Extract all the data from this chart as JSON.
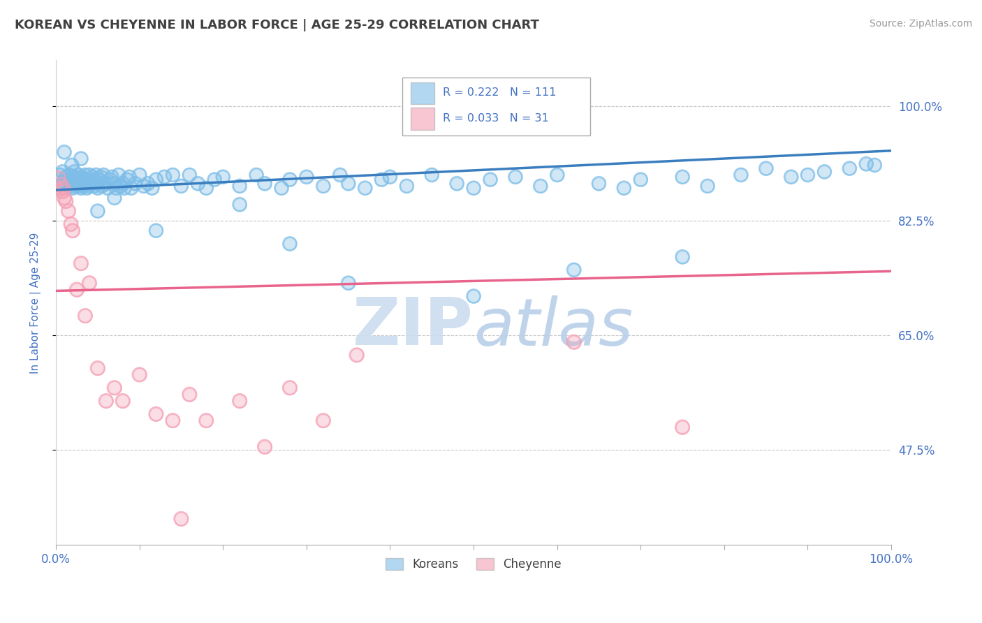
{
  "title": "KOREAN VS CHEYENNE IN LABOR FORCE | AGE 25-29 CORRELATION CHART",
  "source_text": "Source: ZipAtlas.com",
  "ylabel": "In Labor Force | Age 25-29",
  "xlim": [
    0.0,
    1.0
  ],
  "ylim": [
    0.33,
    1.07
  ],
  "yticks": [
    0.475,
    0.65,
    0.825,
    1.0
  ],
  "ytick_labels": [
    "47.5%",
    "65.0%",
    "82.5%",
    "100.0%"
  ],
  "xticks": [
    0.0,
    1.0
  ],
  "xtick_labels": [
    "0.0%",
    "100.0%"
  ],
  "korean_R": 0.222,
  "korean_N": 111,
  "cheyenne_R": 0.033,
  "cheyenne_N": 31,
  "korean_color": "#7dbde8",
  "cheyenne_color": "#f4a0b5",
  "korean_line_color": "#3a7ebf",
  "cheyenne_line_color": "#e8648c",
  "legend_text_color": "#4472c4",
  "background_color": "#ffffff",
  "grid_color": "#c8c8c8",
  "watermark_color": "#ccddef",
  "title_color": "#404040",
  "tick_label_color": "#4472c4",
  "korean_line_y0": 0.872,
  "korean_line_y1": 0.932,
  "cheyenne_line_y0": 0.718,
  "cheyenne_line_y1": 0.748,
  "korean_x": [
    0.005,
    0.008,
    0.01,
    0.012,
    0.015,
    0.016,
    0.017,
    0.018,
    0.019,
    0.02,
    0.02,
    0.021,
    0.022,
    0.023,
    0.025,
    0.026,
    0.027,
    0.028,
    0.03,
    0.03,
    0.031,
    0.032,
    0.033,
    0.035,
    0.036,
    0.037,
    0.038,
    0.04,
    0.04,
    0.042,
    0.043,
    0.044,
    0.046,
    0.048,
    0.05,
    0.05,
    0.052,
    0.054,
    0.055,
    0.057,
    0.06,
    0.062,
    0.065,
    0.067,
    0.07,
    0.072,
    0.075,
    0.078,
    0.08,
    0.082,
    0.085,
    0.088,
    0.09,
    0.095,
    0.1,
    0.105,
    0.11,
    0.115,
    0.12,
    0.13,
    0.14,
    0.15,
    0.16,
    0.17,
    0.18,
    0.19,
    0.2,
    0.22,
    0.24,
    0.25,
    0.27,
    0.28,
    0.3,
    0.32,
    0.34,
    0.35,
    0.37,
    0.39,
    0.4,
    0.42,
    0.45,
    0.48,
    0.5,
    0.52,
    0.55,
    0.58,
    0.6,
    0.65,
    0.68,
    0.7,
    0.75,
    0.78,
    0.82,
    0.85,
    0.88,
    0.9,
    0.92,
    0.95,
    0.97,
    0.98,
    0.01,
    0.03,
    0.05,
    0.07,
    0.12,
    0.22,
    0.28,
    0.35,
    0.5,
    0.62,
    0.75
  ],
  "korean_y": [
    0.895,
    0.9,
    0.885,
    0.892,
    0.888,
    0.895,
    0.882,
    0.878,
    0.91,
    0.893,
    0.875,
    0.885,
    0.9,
    0.878,
    0.888,
    0.882,
    0.895,
    0.878,
    0.888,
    0.875,
    0.892,
    0.882,
    0.878,
    0.895,
    0.885,
    0.875,
    0.888,
    0.895,
    0.878,
    0.882,
    0.888,
    0.892,
    0.878,
    0.895,
    0.882,
    0.875,
    0.888,
    0.892,
    0.878,
    0.895,
    0.882,
    0.875,
    0.888,
    0.892,
    0.882,
    0.875,
    0.895,
    0.878,
    0.882,
    0.875,
    0.888,
    0.892,
    0.875,
    0.882,
    0.895,
    0.878,
    0.882,
    0.875,
    0.888,
    0.892,
    0.895,
    0.878,
    0.895,
    0.882,
    0.875,
    0.888,
    0.892,
    0.878,
    0.895,
    0.882,
    0.875,
    0.888,
    0.892,
    0.878,
    0.895,
    0.882,
    0.875,
    0.888,
    0.892,
    0.878,
    0.895,
    0.882,
    0.875,
    0.888,
    0.892,
    0.878,
    0.895,
    0.882,
    0.875,
    0.888,
    0.892,
    0.878,
    0.895,
    0.905,
    0.892,
    0.895,
    0.9,
    0.905,
    0.912,
    0.91,
    0.93,
    0.92,
    0.84,
    0.86,
    0.81,
    0.85,
    0.79,
    0.73,
    0.71,
    0.75,
    0.77
  ],
  "cheyenne_x": [
    0.003,
    0.005,
    0.006,
    0.008,
    0.009,
    0.01,
    0.012,
    0.015,
    0.018,
    0.02,
    0.025,
    0.03,
    0.035,
    0.04,
    0.05,
    0.06,
    0.07,
    0.08,
    0.1,
    0.12,
    0.14,
    0.16,
    0.18,
    0.22,
    0.25,
    0.28,
    0.32,
    0.36,
    0.62,
    0.75,
    0.15
  ],
  "cheyenne_y": [
    0.89,
    0.875,
    0.88,
    0.87,
    0.875,
    0.86,
    0.855,
    0.84,
    0.82,
    0.81,
    0.72,
    0.76,
    0.68,
    0.73,
    0.6,
    0.55,
    0.57,
    0.55,
    0.59,
    0.53,
    0.52,
    0.56,
    0.52,
    0.55,
    0.48,
    0.57,
    0.52,
    0.62,
    0.64,
    0.51,
    0.37
  ]
}
